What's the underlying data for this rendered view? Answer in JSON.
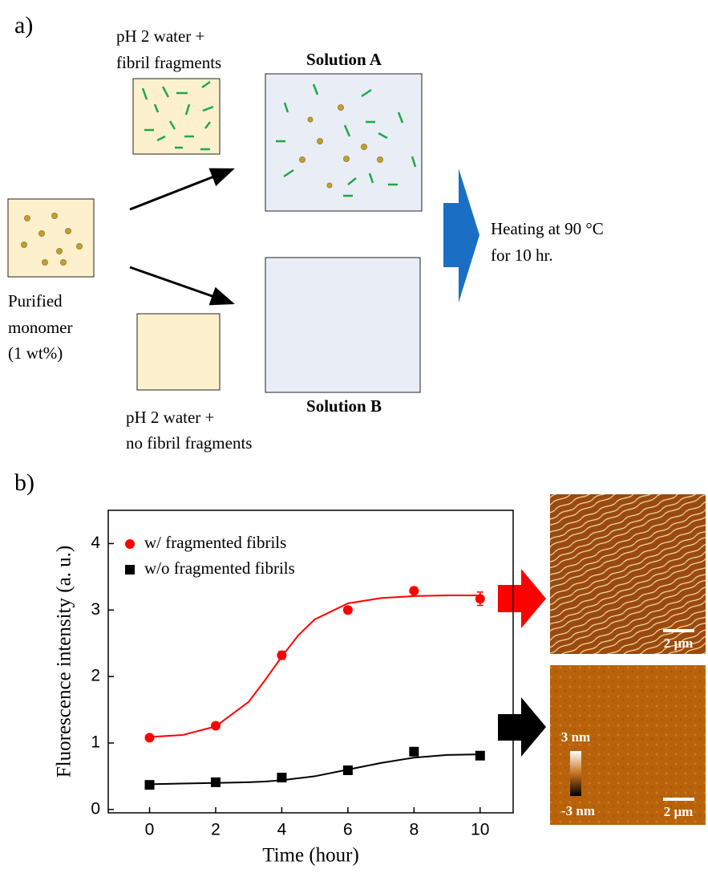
{
  "panel_a": {
    "label": "a)",
    "fragments_caption": [
      "pH 2 water +",
      "fibril fragments"
    ],
    "solution_a": "Solution A",
    "monomer_caption": [
      "Purified",
      "monomer",
      "(1 wt%)"
    ],
    "solution_b": "Solution B",
    "no_fragments_caption": [
      "pH 2 water +",
      "no fibril fragments"
    ],
    "heating": [
      "Heating at 90 °C",
      "for 10 hr."
    ]
  },
  "panel_b": {
    "label": "b)",
    "images": {
      "scale_bar": "2 μm",
      "height_max": "3 nm",
      "height_min": "-3 nm"
    }
  },
  "chart_data": {
    "type": "scatter",
    "xlabel": "Time (hour)",
    "ylabel": "Fluorescence intensity (a. u.)",
    "x": [
      0,
      2,
      4,
      6,
      8,
      10
    ],
    "fit_x": [
      0,
      1,
      2,
      3,
      3.5,
      4,
      4.5,
      5,
      6,
      7,
      8,
      9,
      10
    ],
    "series": [
      {
        "name": "w/ fragmented fibrils",
        "color": "#ff0000",
        "marker": "circle",
        "values": [
          1.08,
          1.26,
          2.32,
          3.0,
          3.29,
          3.17
        ],
        "errors": [
          0.04,
          0.04,
          0.06,
          0.05,
          0.05,
          0.1
        ],
        "fit_values": [
          1.09,
          1.12,
          1.25,
          1.62,
          1.95,
          2.3,
          2.62,
          2.86,
          3.1,
          3.18,
          3.21,
          3.22,
          3.22
        ]
      },
      {
        "name": "w/o fragmented fibrils",
        "color": "#000000",
        "marker": "square",
        "values": [
          0.37,
          0.41,
          0.48,
          0.59,
          0.87,
          0.81
        ],
        "errors": [
          0.03,
          0.03,
          0.03,
          0.03,
          0.04,
          0.03
        ],
        "fit_values": [
          0.38,
          0.39,
          0.4,
          0.41,
          0.42,
          0.44,
          0.47,
          0.5,
          0.6,
          0.7,
          0.78,
          0.82,
          0.83
        ]
      }
    ],
    "xlim": [
      -1.25,
      11
    ],
    "ylim": [
      -0.05,
      4.5
    ],
    "xticks": [
      0,
      2,
      4,
      6,
      8,
      10
    ],
    "yticks": [
      0,
      1,
      2,
      3,
      4
    ],
    "legend": "upper left"
  }
}
